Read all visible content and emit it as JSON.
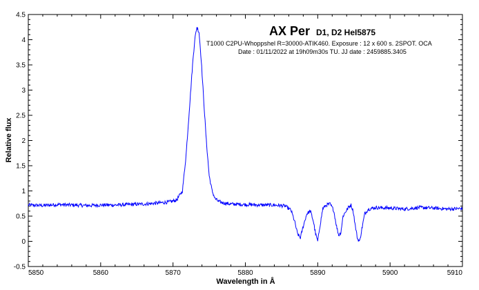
{
  "chart_data": {
    "type": "line",
    "title": "AX Per",
    "subtitle": "D1, D2 HeI5875",
    "annotations": [
      "T1000 C2PU-Whoppshel R=30000-ATIK460. Exposure : 12 x 600 s. 2SPOT. OCA",
      "Date : 01/11/2022 at 19h09m30s TU. JJ date : 2459885.3405"
    ],
    "xlabel": "Wavelength in Å",
    "ylabel": "Relative flux",
    "xlim": [
      5850,
      5910
    ],
    "ylim": [
      -0.5,
      4.5
    ],
    "x_ticks": [
      "5850",
      "5860",
      "5870",
      "5880",
      "5890",
      "5900",
      "5910"
    ],
    "y_ticks": [
      "-0.5",
      "0",
      "0.5",
      "1",
      "1.5",
      "2",
      "2.5",
      "3",
      "3.5",
      "4",
      "4.5"
    ],
    "grid": false,
    "line_color": "#0000ff",
    "series": [
      {
        "x": [
          5850,
          5852,
          5854,
          5856,
          5858,
          5860,
          5862,
          5864,
          5866,
          5868,
          5869.5,
          5870.5,
          5871.3,
          5871.8,
          5872.3,
          5872.7,
          5873.0,
          5873.3,
          5873.6,
          5873.9,
          5874.2,
          5874.6,
          5875.0,
          5875.4,
          5875.8,
          5876.3,
          5877,
          5878,
          5880,
          5882,
          5884,
          5885.5,
          5886.3,
          5886.8,
          5887.2,
          5887.6,
          5888.0,
          5888.5,
          5889.0,
          5889.4,
          5889.7,
          5890.0,
          5890.3,
          5890.7,
          5891.2,
          5891.7,
          5892.2,
          5892.6,
          5892.9,
          5893.2,
          5893.5,
          5893.9,
          5894.3,
          5894.6,
          5894.9,
          5895.2,
          5895.5,
          5895.8,
          5896.1,
          5896.5,
          5897,
          5898,
          5900,
          5902,
          5904,
          5906,
          5908,
          5910
        ],
        "y": [
          0.72,
          0.71,
          0.73,
          0.72,
          0.71,
          0.72,
          0.72,
          0.73,
          0.74,
          0.76,
          0.78,
          0.82,
          1.0,
          1.7,
          2.7,
          3.5,
          4.0,
          4.25,
          4.15,
          3.6,
          2.9,
          2.0,
          1.3,
          1.0,
          0.85,
          0.79,
          0.76,
          0.74,
          0.73,
          0.72,
          0.72,
          0.7,
          0.62,
          0.4,
          0.15,
          0.07,
          0.3,
          0.55,
          0.6,
          0.4,
          0.15,
          0.0,
          0.3,
          0.65,
          0.72,
          0.74,
          0.62,
          0.3,
          0.12,
          0.18,
          0.5,
          0.6,
          0.68,
          0.72,
          0.6,
          0.3,
          0.05,
          0.0,
          0.25,
          0.55,
          0.64,
          0.67,
          0.66,
          0.64,
          0.67,
          0.66,
          0.64,
          0.65
        ]
      }
    ]
  }
}
